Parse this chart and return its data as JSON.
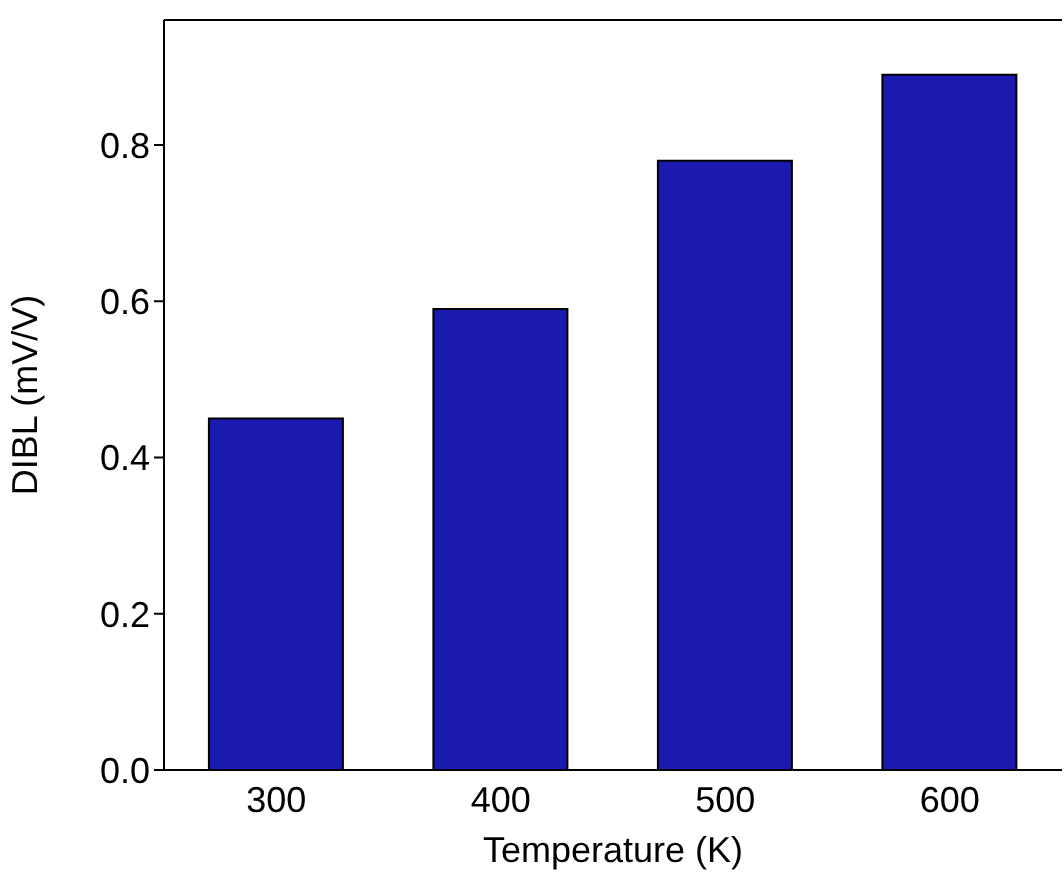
{
  "chart_data": {
    "type": "bar",
    "xlabel": "Temperature (K)",
    "ylabel": "DIBL (mV/V)",
    "categories": [
      "300",
      "400",
      "500",
      "600"
    ],
    "values": [
      0.45,
      0.59,
      0.78,
      0.89
    ],
    "color": "#1a1ab0",
    "ylim": [
      0,
      0.96
    ],
    "yticks": [
      {
        "value": 0,
        "label": "0.0"
      },
      0.2,
      0.4,
      0.6,
      0.8
    ],
    "grid": false
  }
}
